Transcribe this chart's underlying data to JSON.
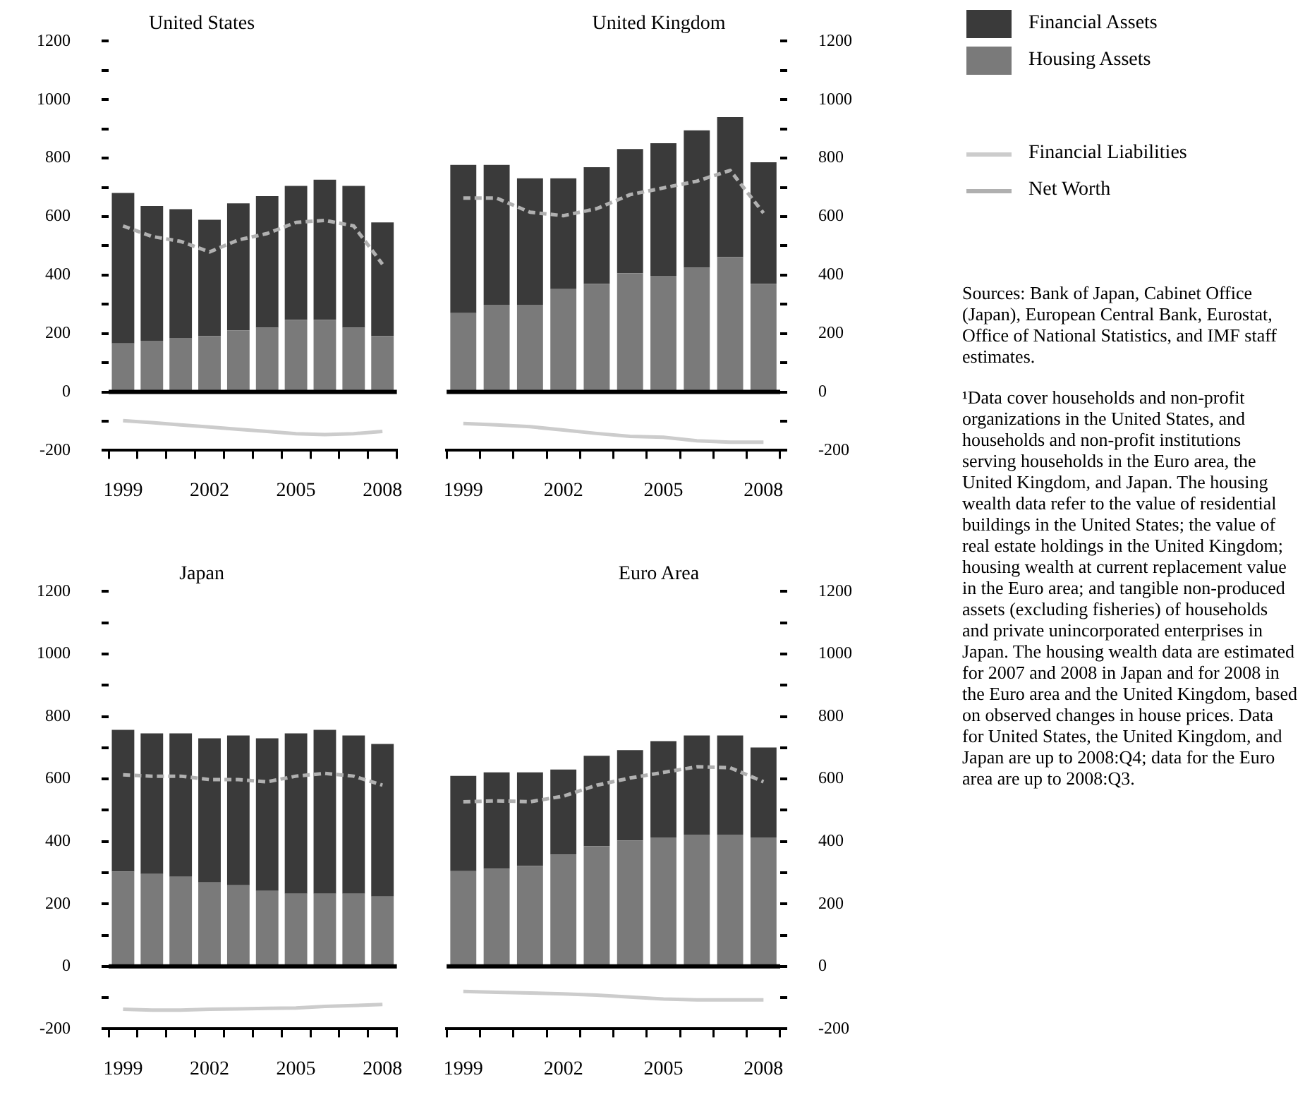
{
  "chart_data": [
    {
      "type": "bar",
      "title": "United States",
      "stacked": true,
      "legend": "right",
      "grid": false,
      "categories": [
        "1999",
        null,
        null,
        "2002",
        null,
        null,
        "2005",
        null,
        null,
        "2008"
      ],
      "series": [
        {
          "name": "Housing Assets",
          "color": "#7a7a7a",
          "values": [
            166,
            175,
            185,
            191,
            211,
            220,
            247,
            247,
            220,
            191
          ]
        },
        {
          "name": "Financial Assets",
          "color": "#3a3a3a",
          "values": [
            515,
            461,
            440,
            398,
            434,
            450,
            458,
            479,
            485,
            389
          ]
        },
        {
          "name": "Financial Liabilities",
          "type": "line",
          "color": "#cccccc",
          "line_style": "solid",
          "values": [
            -98,
            -105,
            -113,
            -120,
            -128,
            -135,
            -143,
            -146,
            -143,
            -135
          ]
        },
        {
          "name": "Net Worth",
          "type": "line",
          "color": "#b0b0b0",
          "line_style": "dashed",
          "values": [
            568,
            532,
            515,
            479,
            520,
            542,
            580,
            587,
            568,
            437
          ]
        }
      ],
      "ylim": [
        -200,
        1200
      ],
      "yticks": [
        -200,
        {
          "value": -100,
          "label": null
        },
        0,
        {
          "value": 100,
          "label": null
        },
        200,
        {
          "value": 300,
          "label": null
        },
        400,
        {
          "value": 500,
          "label": null
        },
        600,
        {
          "value": 700,
          "label": null
        },
        800,
        {
          "value": 900,
          "label": null
        },
        1000,
        {
          "value": 1100,
          "label": null
        },
        1200
      ],
      "ref_lines": [
        {
          "axis": "y",
          "value": 0,
          "color": "#000000"
        }
      ],
      "annotations": [
        "Sources: Bank of Japan, Cabinet Office (Japan), European Central Bank, Eurostat, Office of National Statistics, and IMF staff estimates.",
        "¹Data cover households and non-profit organizations in the United States, and households and non-profit institutions serving households in the Euro area, the United Kingdom, and Japan. The housing wealth data refer to the value of residential buildings in the United States; the value of real estate holdings in the United Kingdom; housing wealth at current replacement value in the Euro area; and tangible non-produced assets (excluding fisheries) of households and private unincorporated enterprises in Japan. The housing wealth data are estimated for 2007 and 2008 in Japan and for 2008 in the Euro area and the United Kingdom, based on observed changes in house prices. Data for United States, the United Kingdom, and Japan are up to 2008:Q4; data for the Euro area are up to 2008:Q3."
      ]
    },
    {
      "type": "bar",
      "title": "United Kingdom",
      "stacked": true,
      "grid": false,
      "categories": [
        "1999",
        null,
        null,
        "2002",
        null,
        null,
        "2005",
        null,
        null,
        "2008"
      ],
      "series": [
        {
          "color": "#7a7a7a",
          "values": [
            270,
            298,
            298,
            352,
            370,
            406,
            397,
            425,
            461,
            370
          ]
        },
        {
          "color": "#3a3a3a",
          "values": [
            507,
            479,
            433,
            379,
            399,
            425,
            454,
            470,
            479,
            416
          ]
        },
        {
          "type": "line",
          "color": "#cccccc",
          "line_style": "solid",
          "values": [
            -108,
            -113,
            -119,
            -130,
            -142,
            -152,
            -155,
            -167,
            -172,
            -172
          ]
        },
        {
          "type": "line",
          "color": "#b0b0b0",
          "line_style": "dashed",
          "values": [
            663,
            663,
            615,
            603,
            627,
            675,
            698,
            721,
            758,
            612
          ]
        }
      ],
      "ylim": [
        -200,
        1200
      ],
      "yticks": [
        -200,
        {
          "value": -100,
          "label": null
        },
        0,
        {
          "value": 100,
          "label": null
        },
        200,
        {
          "value": 300,
          "label": null
        },
        400,
        {
          "value": 500,
          "label": null
        },
        600,
        {
          "value": 700,
          "label": null
        },
        800,
        {
          "value": 900,
          "label": null
        },
        1000,
        {
          "value": 1100,
          "label": null
        },
        1200
      ],
      "ref_lines": [
        {
          "axis": "y",
          "value": 0,
          "color": "#000000"
        }
      ]
    },
    {
      "type": "bar",
      "title": "Japan",
      "stacked": true,
      "grid": false,
      "categories": [
        "1999",
        null,
        null,
        "2002",
        null,
        null,
        "2005",
        null,
        null,
        "2008"
      ],
      "series": [
        {
          "color": "#7a7a7a",
          "values": [
            304,
            296,
            287,
            269,
            260,
            242,
            233,
            233,
            233,
            224
          ]
        },
        {
          "color": "#3a3a3a",
          "values": [
            453,
            450,
            459,
            461,
            479,
            488,
            513,
            524,
            506,
            488
          ]
        },
        {
          "type": "line",
          "color": "#cccccc",
          "line_style": "solid",
          "values": [
            -137,
            -140,
            -140,
            -137,
            -136,
            -134,
            -133,
            -128,
            -125,
            -122
          ]
        },
        {
          "type": "line",
          "color": "#b0b0b0",
          "line_style": "dashed",
          "values": [
            613,
            609,
            609,
            598,
            598,
            591,
            609,
            618,
            609,
            580
          ]
        }
      ],
      "ylim": [
        -200,
        1200
      ],
      "yticks": [
        -200,
        {
          "value": -100,
          "label": null
        },
        0,
        {
          "value": 100,
          "label": null
        },
        200,
        {
          "value": 300,
          "label": null
        },
        400,
        {
          "value": 500,
          "label": null
        },
        600,
        {
          "value": 700,
          "label": null
        },
        800,
        {
          "value": 900,
          "label": null
        },
        1000,
        {
          "value": 1100,
          "label": null
        },
        1200
      ],
      "ref_lines": [
        {
          "axis": "y",
          "value": 0,
          "color": "#000000"
        }
      ]
    },
    {
      "type": "bar",
      "title": "Euro Area",
      "stacked": true,
      "grid": false,
      "categories": [
        "1999",
        null,
        null,
        "2002",
        null,
        null,
        "2005",
        null,
        null,
        "2008"
      ],
      "series": [
        {
          "color": "#7a7a7a",
          "values": [
            305,
            313,
            322,
            358,
            385,
            403,
            413,
            422,
            422,
            413
          ]
        },
        {
          "color": "#3a3a3a",
          "values": [
            305,
            308,
            299,
            272,
            289,
            289,
            308,
            317,
            317,
            288
          ]
        },
        {
          "type": "line",
          "color": "#cccccc",
          "line_style": "solid",
          "values": [
            -80,
            -83,
            -85,
            -88,
            -92,
            -98,
            -104,
            -107,
            -107,
            -107
          ]
        },
        {
          "type": "line",
          "color": "#b0b0b0",
          "line_style": "dashed",
          "values": [
            527,
            530,
            527,
            545,
            580,
            603,
            621,
            639,
            636,
            591
          ]
        }
      ],
      "ylim": [
        -200,
        1200
      ],
      "yticks": [
        -200,
        {
          "value": -100,
          "label": null
        },
        0,
        {
          "value": 100,
          "label": null
        },
        200,
        {
          "value": 300,
          "label": null
        },
        400,
        {
          "value": 500,
          "label": null
        },
        600,
        {
          "value": 700,
          "label": null
        },
        800,
        {
          "value": 900,
          "label": null
        },
        1000,
        {
          "value": 1100,
          "label": null
        },
        1200
      ],
      "ref_lines": [
        {
          "axis": "y",
          "value": 0,
          "color": "#000000"
        }
      ]
    }
  ]
}
